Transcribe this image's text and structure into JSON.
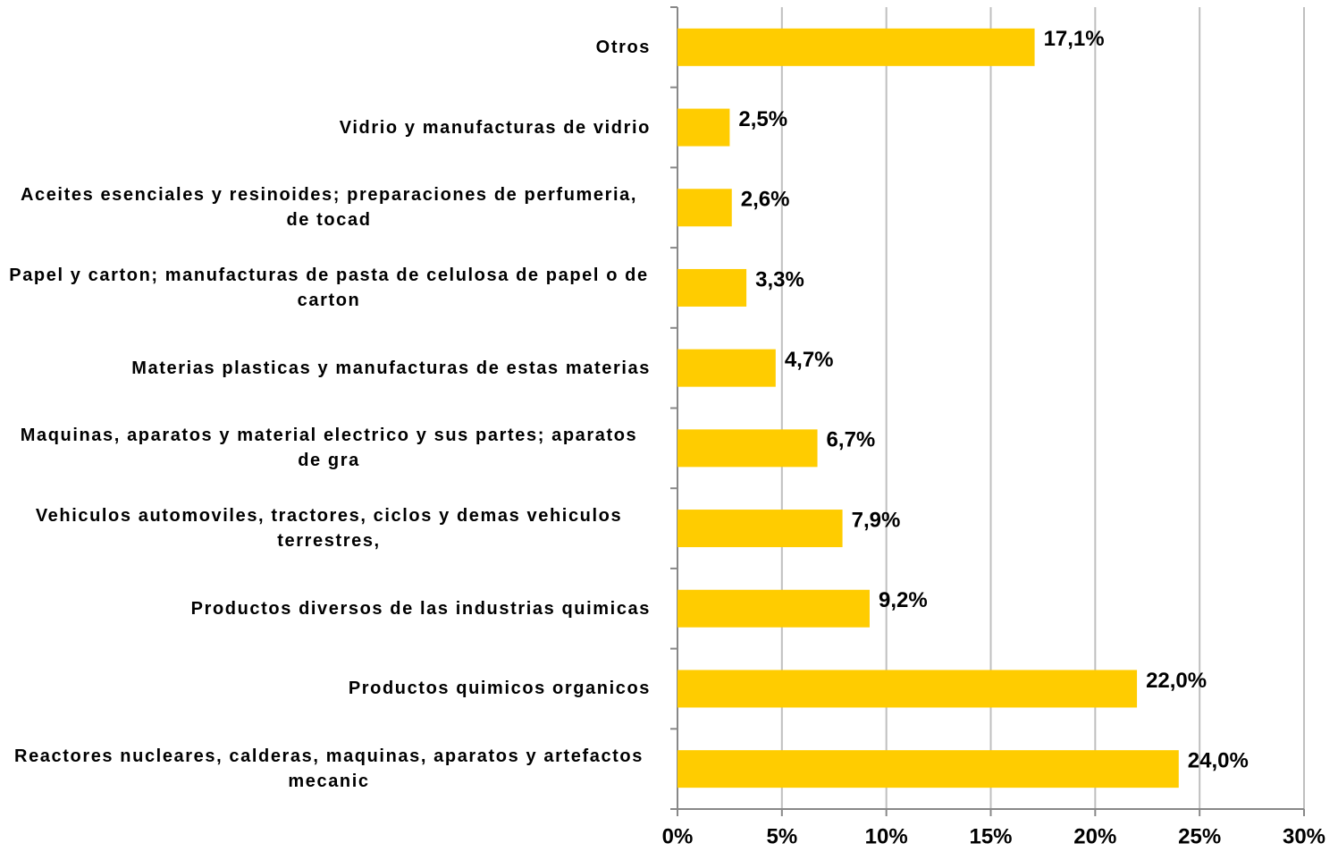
{
  "chart_data": {
    "type": "barh",
    "categories": [
      "Otros",
      "Vidrio y manufacturas de vidrio",
      "Aceites esenciales y resinoides; preparaciones de perfumeria, de tocad",
      "Papel y carton; manufacturas de pasta de celulosa de papel o de carton",
      "Materias plasticas y manufacturas de estas materias",
      "Maquinas, aparatos y material electrico y sus partes; aparatos de gra",
      "Vehiculos automoviles, tractores, ciclos y demas vehiculos terrestres,",
      "Productos diversos de las industrias quimicas",
      "Productos quimicos organicos",
      "Reactores nucleares, calderas, maquinas, aparatos y artefactos mecanic"
    ],
    "values": [
      17.1,
      2.5,
      2.6,
      3.3,
      4.7,
      6.7,
      7.9,
      9.2,
      22.0,
      24.0
    ],
    "value_labels": [
      "17,1%",
      "2,5%",
      "2,6%",
      "3,3%",
      "4,7%",
      "6,7%",
      "7,9%",
      "9,2%",
      "22,0%",
      "24,0%"
    ],
    "color": "#ffcc00",
    "xlim": [
      0,
      30
    ],
    "xticks": [
      {
        "value": 0,
        "label": "0%"
      },
      {
        "value": 5,
        "label": "5%"
      },
      {
        "value": 10,
        "label": "10%"
      },
      {
        "value": 15,
        "label": "15%"
      },
      {
        "value": 20,
        "label": "20%"
      },
      {
        "value": 25,
        "label": "25%"
      },
      {
        "value": 30,
        "label": "30%"
      }
    ],
    "grid": true
  }
}
